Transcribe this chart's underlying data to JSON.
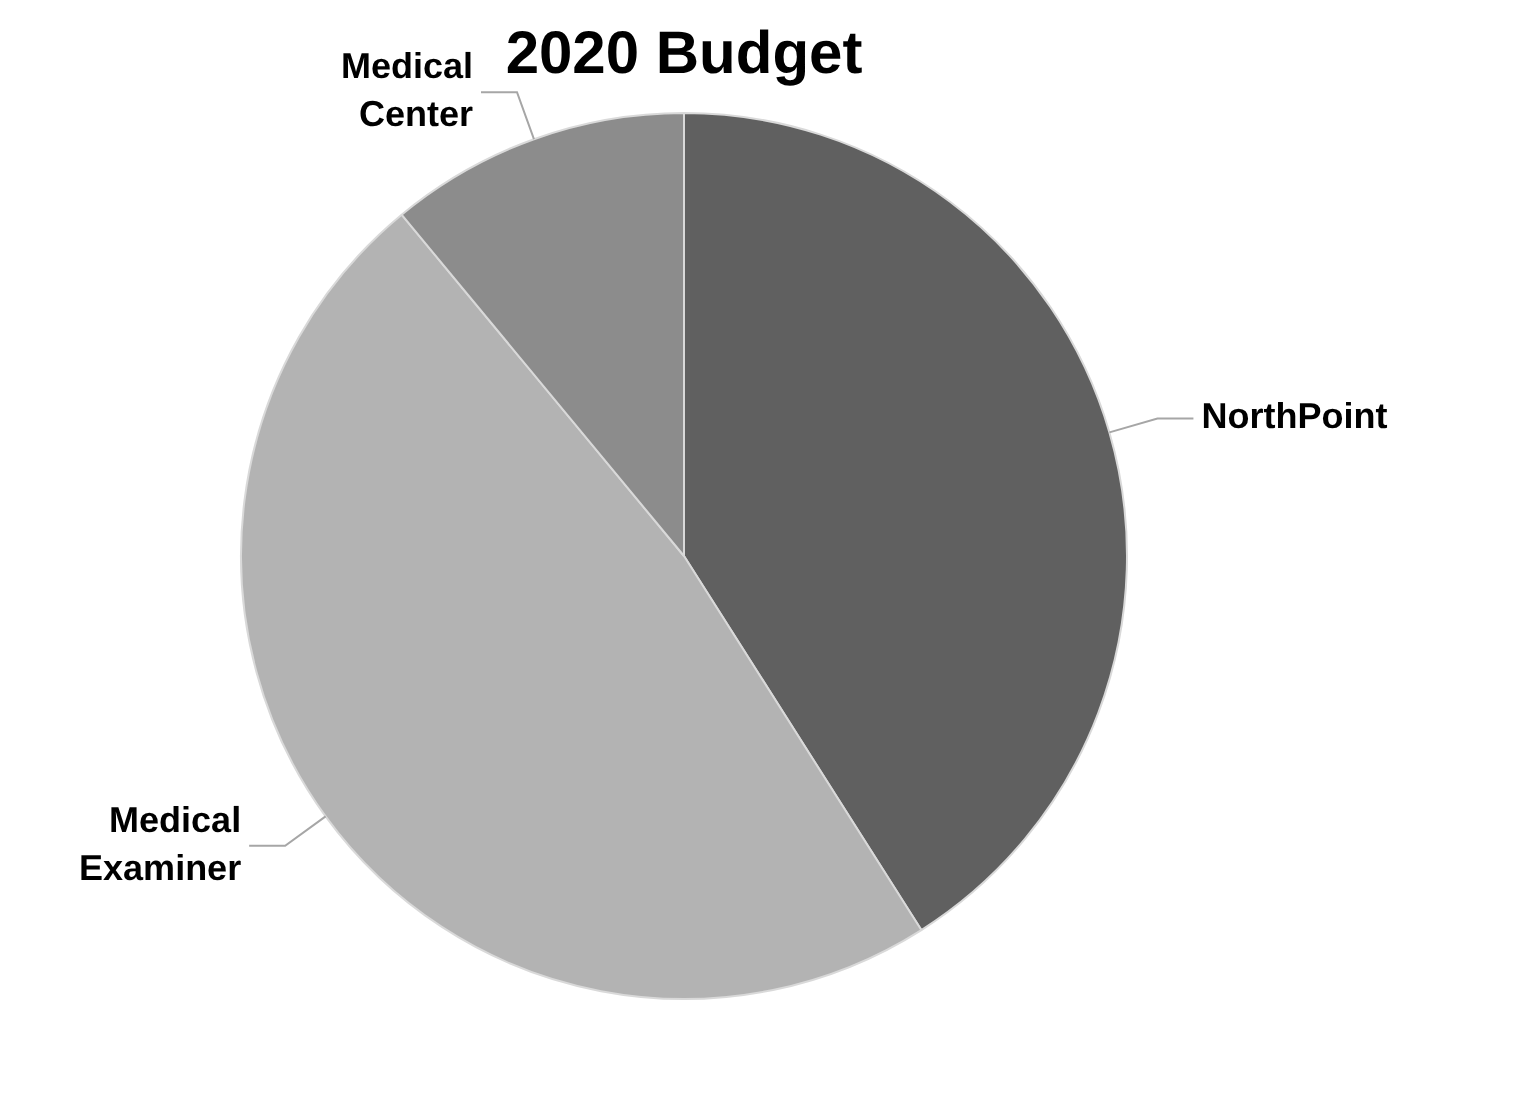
{
  "chart_data": {
    "type": "pie",
    "title": "2020 Budget",
    "categories": [
      "NorthPoint",
      "Medical Examiner",
      "Medical Center"
    ],
    "values": [
      41,
      48,
      11
    ],
    "colors": [
      "#606060",
      "#b3b3b3",
      "#8c8c8c"
    ]
  }
}
